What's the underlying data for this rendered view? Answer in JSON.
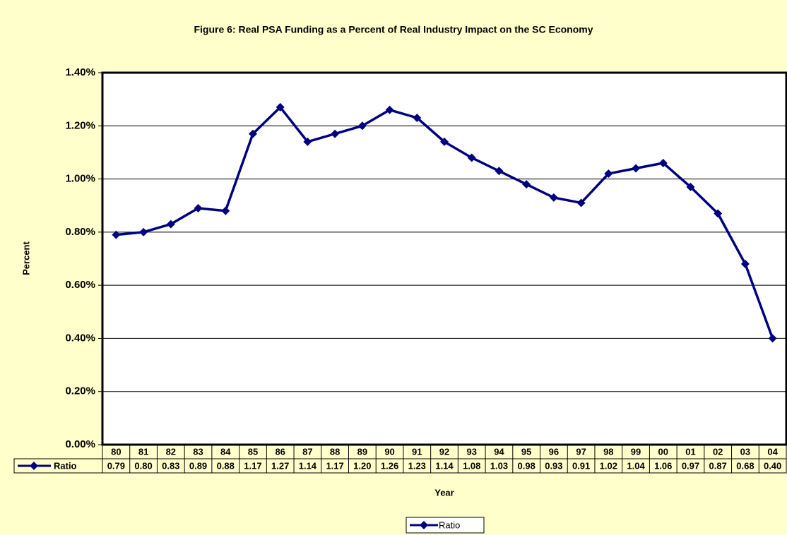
{
  "chart_data": {
    "type": "line",
    "title": "Figure 6:  Real PSA Funding as a Percent of Real Industry Impact on the SC Economy",
    "x_label": "Year",
    "y_label": "Percent",
    "categories": [
      "80",
      "81",
      "82",
      "83",
      "84",
      "85",
      "86",
      "87",
      "88",
      "89",
      "90",
      "91",
      "92",
      "93",
      "94",
      "95",
      "96",
      "97",
      "98",
      "99",
      "00",
      "01",
      "02",
      "03",
      "04"
    ],
    "series": [
      {
        "name": "Ratio",
        "color": "#000080",
        "values": [
          0.79,
          0.8,
          0.83,
          0.89,
          0.88,
          1.17,
          1.27,
          1.14,
          1.17,
          1.2,
          1.26,
          1.23,
          1.14,
          1.08,
          1.03,
          0.98,
          0.93,
          0.91,
          1.02,
          1.04,
          1.06,
          0.97,
          0.87,
          0.68,
          0.4
        ],
        "value_labels": [
          "0.79",
          "0.80",
          "0.83",
          "0.89",
          "0.88",
          "1.17",
          "1.27",
          "1.14",
          "1.17",
          "1.20",
          "1.26",
          "1.23",
          "1.14",
          "1.08",
          "1.03",
          "0.98",
          "0.93",
          "0.91",
          "1.02",
          "1.04",
          "1.06",
          "0.97",
          "0.87",
          "0.68",
          "0.40"
        ]
      }
    ],
    "ylim": [
      0,
      1.4
    ],
    "yticks": [
      {
        "value": 0,
        "label": "0.00%"
      },
      {
        "value": 0.2,
        "label": "0.20%"
      },
      {
        "value": 0.4,
        "label": "0.40%"
      },
      {
        "value": 0.6,
        "label": "0.60%"
      },
      {
        "value": 0.8,
        "label": "0.80%"
      },
      {
        "value": 1.0,
        "label": "1.00%"
      },
      {
        "value": 1.2,
        "label": "1.20%"
      },
      {
        "value": 1.4,
        "label": "1.40%"
      }
    ],
    "grid": true,
    "legend": "bottom"
  }
}
